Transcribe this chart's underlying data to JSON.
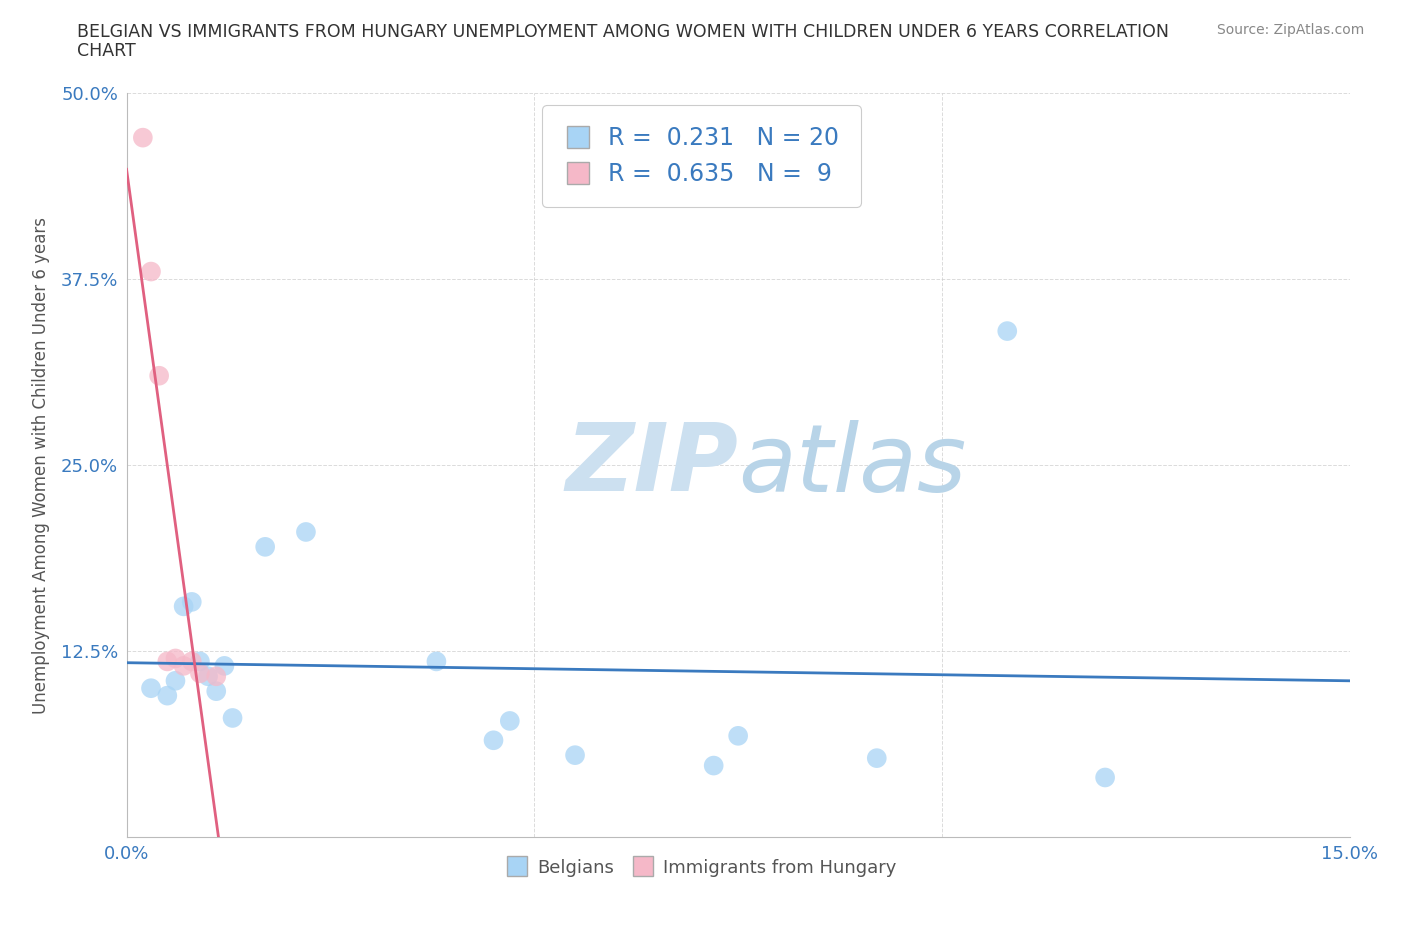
{
  "title_line1": "BELGIAN VS IMMIGRANTS FROM HUNGARY UNEMPLOYMENT AMONG WOMEN WITH CHILDREN UNDER 6 YEARS CORRELATION",
  "title_line2": "CHART",
  "source": "Source: ZipAtlas.com",
  "ylabel": "Unemployment Among Women with Children Under 6 years",
  "xlim": [
    0.0,
    0.15
  ],
  "ylim": [
    0.0,
    0.5
  ],
  "belgian_x": [
    0.003,
    0.005,
    0.006,
    0.007,
    0.008,
    0.009,
    0.01,
    0.011,
    0.012,
    0.013,
    0.017,
    0.022,
    0.038,
    0.045,
    0.047,
    0.055,
    0.072,
    0.075,
    0.092,
    0.12
  ],
  "belgian_y": [
    0.1,
    0.095,
    0.105,
    0.155,
    0.158,
    0.118,
    0.108,
    0.098,
    0.115,
    0.08,
    0.195,
    0.205,
    0.118,
    0.065,
    0.078,
    0.055,
    0.048,
    0.068,
    0.053,
    0.04
  ],
  "belgian_outlier_x": [
    0.108
  ],
  "belgian_outlier_y": [
    0.34
  ],
  "hungary_x": [
    0.002,
    0.003,
    0.004,
    0.005,
    0.006,
    0.007,
    0.008,
    0.009,
    0.011
  ],
  "hungary_y": [
    0.47,
    0.38,
    0.31,
    0.118,
    0.12,
    0.115,
    0.118,
    0.11,
    0.108
  ],
  "R_belgian": 0.231,
  "N_belgian": 20,
  "R_hungary": 0.635,
  "N_hungary": 9,
  "belgian_color": "#a8d4f5",
  "hungary_color": "#f5b8c8",
  "belgian_line_color": "#3a7abf",
  "hungary_line_color": "#e06080",
  "watermark_color_zip": "#c8dff0",
  "watermark_color_atlas": "#b0d0e8",
  "background_color": "#ffffff",
  "grid_color": "#cccccc",
  "title_color": "#333333",
  "axis_label_color": "#3a7abf",
  "ylabel_color": "#555555"
}
